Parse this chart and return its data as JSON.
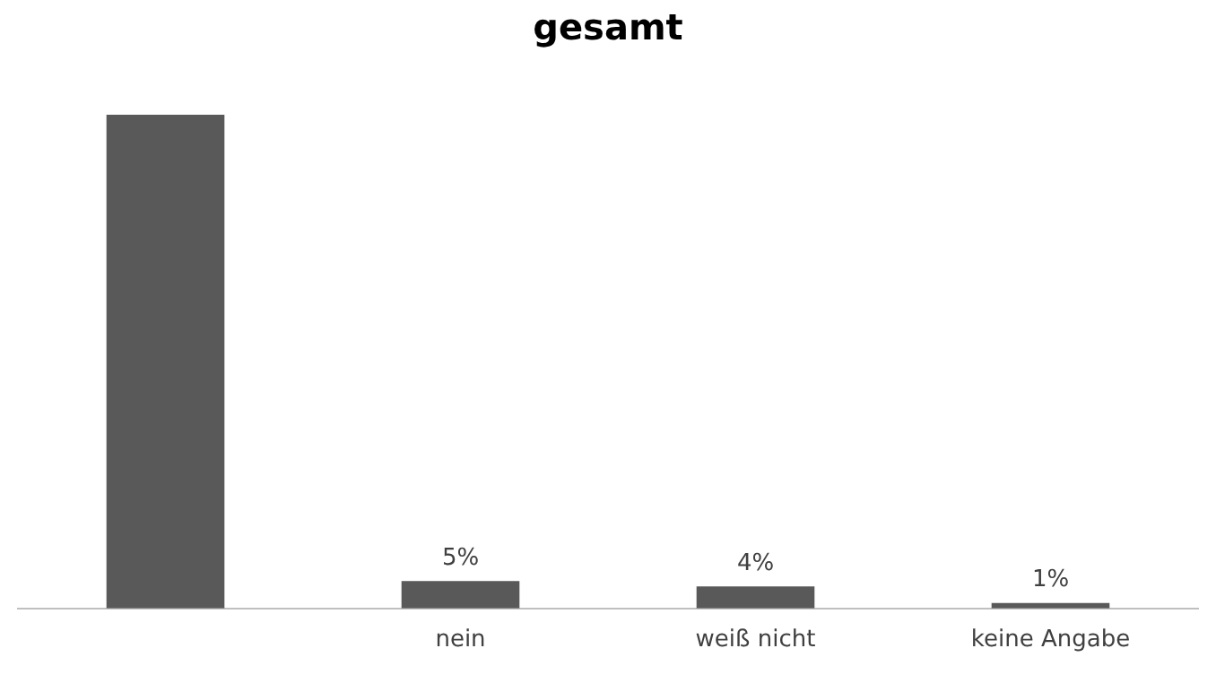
{
  "chart_data": {
    "type": "bar",
    "title": "gesamt",
    "categories": [
      null,
      "nein",
      "weiß nicht",
      "keine Angabe"
    ],
    "values": [
      90,
      5,
      4,
      1
    ],
    "value_labels": [
      null,
      "5%",
      "4%",
      "1%"
    ],
    "color": "#595959",
    "grid": false,
    "legend": false,
    "tick_labels": "x"
  }
}
